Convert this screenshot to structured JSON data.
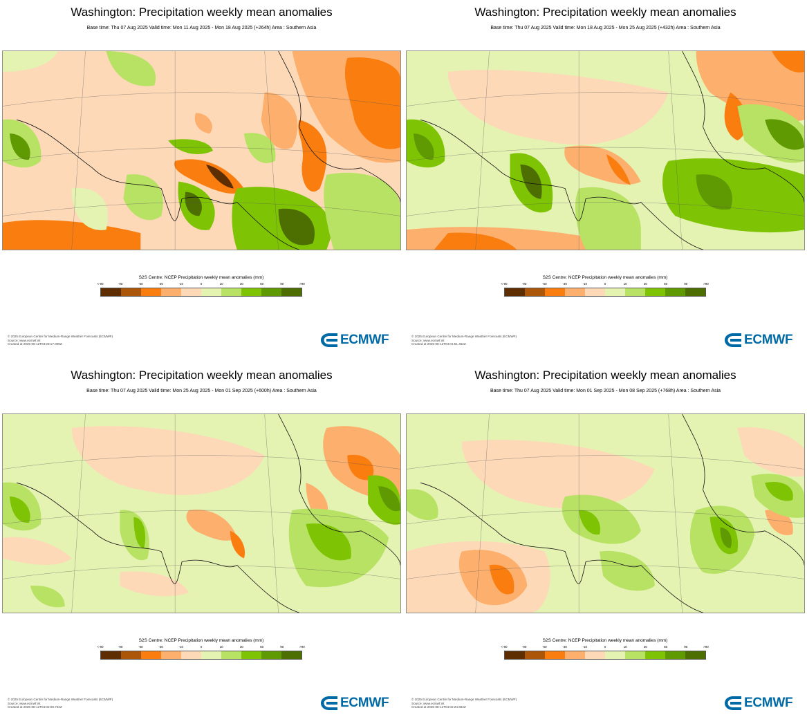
{
  "legend_palette": [
    "#5c2e02",
    "#ac560a",
    "#fa7d10",
    "#fdb06d",
    "#fdd9b8",
    "#e4f2b2",
    "#b8e264",
    "#7ec404",
    "#609a03",
    "#4d6e01"
  ],
  "legend_ticks": [
    "<-90",
    "-90",
    "-60",
    "-30",
    "-10",
    "0",
    "10",
    "30",
    "60",
    "90",
    ">90"
  ],
  "logo_text": "ECMWF",
  "panels": [
    {
      "title": "Washington: Precipitation weekly mean anomalies",
      "subtitle": "Base time: Thu 07 Aug 2025 Valid time: Mon 11 Aug 2025 - Mon 18 Aug 2025 (+264h) Area : Southern Asia",
      "legend_title": "S2S Centre: NCEP Precipitation weekly mean anomalies (mm)",
      "footer": [
        "© 2025 European Centre for Medium-Range Weather Forecasts (ECMWF)",
        "Source: www.ecmwf.int",
        "Created at 2025-08-12T03:28:17.009Z"
      ]
    },
    {
      "title": "Washington: Precipitation weekly mean anomalies",
      "subtitle": "Base time: Thu 07 Aug 2025 Valid time: Mon 18 Aug 2025 - Mon 25 Aug 2025 (+432h) Area : Southern Asia",
      "legend_title": "S2S Centre: NCEP Precipitation weekly mean anomalies (mm)",
      "footer": [
        "© 2025 European Centre for Medium-Range Weather Forecasts (ECMWF)",
        "Source: www.ecmwf.int",
        "Created at 2025-08-12T04:01:51.462Z"
      ]
    },
    {
      "title": "Washington: Precipitation weekly mean anomalies",
      "subtitle": "Base time: Thu 07 Aug 2025 Valid time: Mon 25 Aug 2025 - Mon 01 Sep 2025 (+600h) Area : Southern Asia",
      "legend_title": "S2S Centre: NCEP Precipitation weekly mean anomalies (mm)",
      "footer": [
        "© 2025 European Centre for Medium-Range Weather Forecasts (ECMWF)",
        "Source: www.ecmwf.int",
        "Created at 2025-08-12T04:02:08.722Z"
      ]
    },
    {
      "title": "Washington: Precipitation weekly mean anomalies",
      "subtitle": "Base time: Thu 07 Aug 2025 Valid time: Mon 01 Sep 2025 - Mon 08 Sep 2025 (+768h) Area : Southern Asia",
      "legend_title": "S2S Centre: NCEP Precipitation weekly mean anomalies (mm)",
      "footer": [
        "© 2025 European Centre for Medium-Range Weather Forecasts (ECMWF)",
        "Source: www.ecmwf.int",
        "Created at 2025-08-12T04:02:24.684Z"
      ]
    }
  ]
}
